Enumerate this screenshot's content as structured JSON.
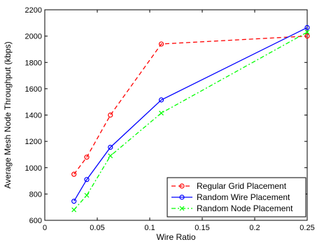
{
  "chart_data": {
    "type": "line",
    "title": "",
    "xlabel": "Wire Ratio",
    "ylabel": "Average Mesh Node Throughput (kbps)",
    "xlim": [
      0,
      0.25
    ],
    "ylim": [
      600,
      2200
    ],
    "xticks": [
      0,
      0.05,
      0.1,
      0.15,
      0.2,
      0.25
    ],
    "xtick_labels": [
      "0",
      "0.05",
      "0.1",
      "0.15",
      "0.2",
      "0.25"
    ],
    "yticks": [
      600,
      800,
      1000,
      1200,
      1400,
      1600,
      1800,
      2000,
      2200
    ],
    "ytick_labels": [
      "600",
      "800",
      "1000",
      "1200",
      "1400",
      "1600",
      "1800",
      "2000",
      "2200"
    ],
    "grid": false,
    "legend_position": "bottom-right",
    "series": [
      {
        "name": "Regular Grid Placement",
        "color": "#ff0000",
        "line_style": "dashed",
        "marker": "circle",
        "x": [
          0.0278,
          0.04,
          0.0625,
          0.111,
          0.25
        ],
        "y": [
          950,
          1080,
          1400,
          1940,
          2000
        ]
      },
      {
        "name": "Random Wire Placement",
        "color": "#0000ff",
        "line_style": "solid",
        "marker": "circle",
        "x": [
          0.0278,
          0.04,
          0.0625,
          0.111,
          0.25
        ],
        "y": [
          745,
          910,
          1155,
          1515,
          2065
        ]
      },
      {
        "name": "Random Node Placement",
        "color": "#00ff00",
        "line_style": "dash-dot",
        "marker": "x",
        "x": [
          0.0278,
          0.04,
          0.0625,
          0.111,
          0.25
        ],
        "y": [
          680,
          790,
          1090,
          1415,
          2030
        ]
      }
    ]
  }
}
